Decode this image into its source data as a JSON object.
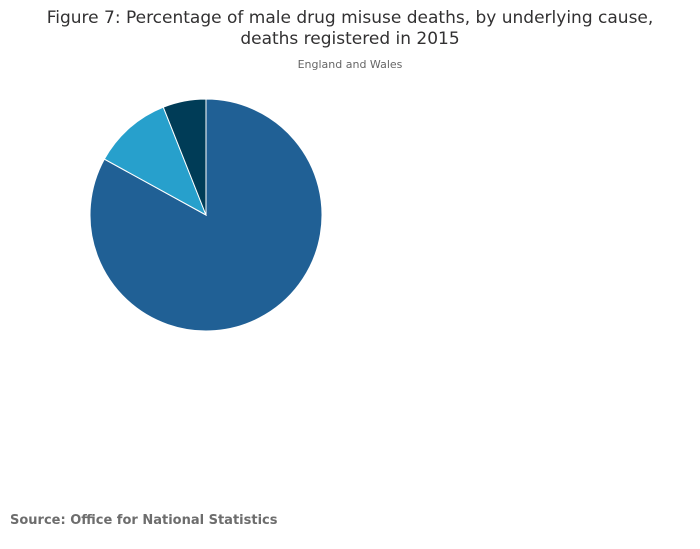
{
  "chart_data": {
    "type": "pie",
    "title": "Figure 7: Percentage of male drug misuse deaths, by underlying cause, deaths registered in 2015",
    "subtitle": "England and Wales",
    "source": "Source: Office for National Statistics",
    "legend": "none",
    "slices": [
      {
        "value": 83,
        "color": "#206095"
      },
      {
        "value": 11,
        "color": "#27a0cc"
      },
      {
        "value": 6,
        "color": "#003c57"
      }
    ]
  }
}
